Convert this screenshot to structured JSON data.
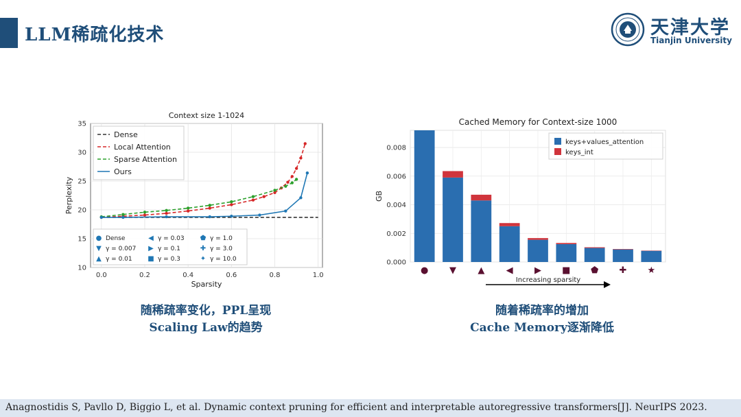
{
  "slide": {
    "title": "LLM稀疏化技术",
    "logo_cn": "天津大学",
    "logo_en": "Tianjin University",
    "caption_left": [
      "随稀疏率变化，PPL呈现",
      "Scaling Law的趋势"
    ],
    "caption_right": [
      "随着稀疏率的增加",
      "Cache Memory逐渐降低"
    ],
    "footer": "Anagnostidis S, Pavllo D, Biggio L, et al. Dynamic context pruning for efficient and interpretable autoregressive transformers[J]. NeurIPS 2023."
  },
  "colors": {
    "brand": "#1f4e79",
    "dense": "#333333",
    "local": "#d62728",
    "sparse": "#2ca02c",
    "ours": "#1f77b4",
    "bar_blue": "#2a6eb0",
    "bar_red": "#d0343c",
    "marker": "#5a1030"
  },
  "chart_data": [
    {
      "type": "line",
      "title": "Context size 1-1024",
      "xlabel": "Sparsity",
      "ylabel": "Perplexity",
      "xlim": [
        -0.05,
        1.02
      ],
      "ylim": [
        10,
        35
      ],
      "xticks": [
        0.0,
        0.2,
        0.4,
        0.6,
        0.8,
        1.0
      ],
      "yticks": [
        10,
        15,
        20,
        25,
        30,
        35
      ],
      "xtick_labels": [
        "0.0",
        "0.2",
        "0.4",
        "0.6",
        "0.8",
        "1.0"
      ],
      "ytick_labels": [
        "10",
        "15",
        "20",
        "25",
        "30",
        "35"
      ],
      "grid": true,
      "legend_position": "upper-left",
      "series": [
        {
          "name": "Dense",
          "style": "dashed",
          "color": "#333333",
          "x": [
            0.0,
            1.0
          ],
          "y": [
            18.7,
            18.7
          ]
        },
        {
          "name": "Local Attention",
          "style": "dashed",
          "color": "#d62728",
          "x": [
            0.0,
            0.1,
            0.2,
            0.3,
            0.4,
            0.5,
            0.6,
            0.7,
            0.75,
            0.8,
            0.83,
            0.86,
            0.88,
            0.9,
            0.92,
            0.94
          ],
          "y": [
            18.7,
            18.9,
            19.1,
            19.4,
            19.8,
            20.3,
            20.9,
            21.7,
            22.3,
            23.0,
            23.8,
            24.8,
            25.8,
            27.2,
            29.0,
            31.5
          ]
        },
        {
          "name": "Sparse Attention",
          "style": "dashed",
          "color": "#2ca02c",
          "x": [
            0.0,
            0.1,
            0.2,
            0.3,
            0.4,
            0.5,
            0.6,
            0.7,
            0.8,
            0.85,
            0.88,
            0.9
          ],
          "y": [
            18.8,
            19.2,
            19.6,
            19.9,
            20.3,
            20.8,
            21.4,
            22.3,
            23.4,
            24.1,
            24.7,
            25.3
          ]
        },
        {
          "name": "Ours",
          "style": "solid",
          "color": "#1f77b4",
          "x": [
            0.0,
            0.1,
            0.3,
            0.5,
            0.6,
            0.73,
            0.85,
            0.92,
            0.95
          ],
          "y": [
            18.7,
            18.7,
            18.8,
            18.8,
            18.9,
            19.1,
            19.8,
            22.1,
            26.4
          ]
        }
      ],
      "marker_legend": [
        {
          "symbol": "●",
          "label": "Dense"
        },
        {
          "symbol": "▼",
          "label": "γ = 0.007"
        },
        {
          "symbol": "▲",
          "label": "γ = 0.01"
        },
        {
          "symbol": "◀",
          "label": "γ = 0.03"
        },
        {
          "symbol": "▶",
          "label": "γ = 0.1"
        },
        {
          "symbol": "■",
          "label": "γ = 0.3"
        },
        {
          "symbol": "⬟",
          "label": "γ = 1.0"
        },
        {
          "symbol": "✚",
          "label": "γ = 3.0"
        },
        {
          "symbol": "✦",
          "label": "γ = 10.0"
        }
      ]
    },
    {
      "type": "bar",
      "stacked": true,
      "title": "Cached Memory for Context-size 1000",
      "xlabel": "Increasing sparsity",
      "ylabel": "GB",
      "ylim": [
        0,
        0.0092
      ],
      "yticks": [
        0.0,
        0.002,
        0.004,
        0.006,
        0.008
      ],
      "ytick_labels": [
        "0.000",
        "0.002",
        "0.004",
        "0.006",
        "0.008"
      ],
      "grid": true,
      "legend_position": "upper-right",
      "categories": [
        "●",
        "▼",
        "▲",
        "◀",
        "▶",
        "■",
        "⬟",
        "✚",
        "★"
      ],
      "series": [
        {
          "name": "keys+values_attention",
          "color": "#2a6eb0",
          "values": [
            0.0092,
            0.0059,
            0.0043,
            0.0025,
            0.00155,
            0.00125,
            0.00098,
            0.00088,
            0.00078
          ]
        },
        {
          "name": "keys_int",
          "color": "#d0343c",
          "values": [
            0.0,
            0.00045,
            0.0004,
            0.00022,
            0.00012,
            8e-05,
            5e-05,
            3e-05,
            2e-05
          ]
        }
      ]
    }
  ]
}
